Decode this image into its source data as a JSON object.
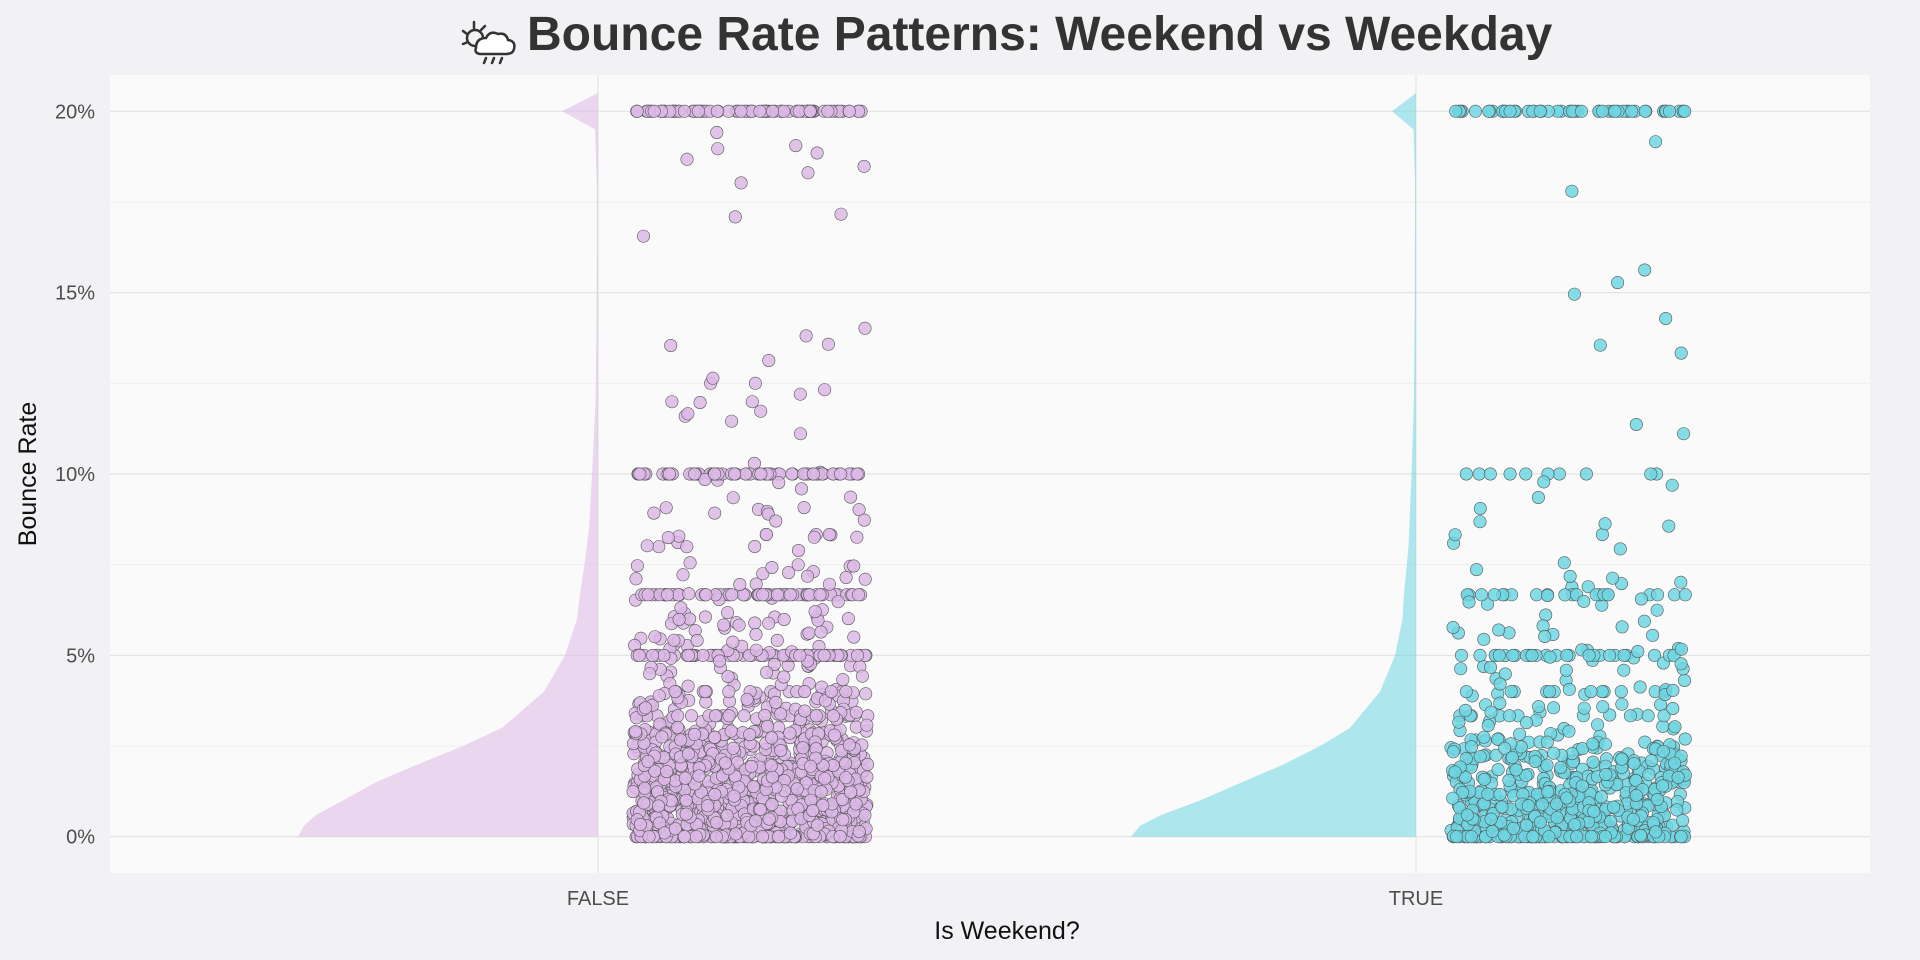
{
  "chart_data": {
    "type": "scatter",
    "subtype": "raincloud (half-violin density + jittered points)",
    "title": "Bounce Rate Patterns: Weekend vs Weekday",
    "title_icon": "weather-partly-cloudy-rain-icon",
    "xlabel": "Is Weekend?",
    "ylabel": "Bounce Rate",
    "categories": [
      "FALSE",
      "TRUE"
    ],
    "ylim": [
      -0.01,
      0.21
    ],
    "yticks": [
      0,
      0.05,
      0.1,
      0.15,
      0.2
    ],
    "ytick_labels": [
      "0%",
      "5%",
      "10%",
      "15%",
      "20%"
    ],
    "grid": true,
    "legend": "none",
    "colors": {
      "FALSE": "#dcb8e6",
      "TRUE": "#6fd6e2",
      "panel_background": "#fafafa",
      "page_background": "#f2f2f5",
      "grid": "#e6e6e6",
      "point_outline": "#555555"
    },
    "series": [
      {
        "category": "FALSE",
        "color": "#dcb8e6",
        "approx_n_points": 1600,
        "density_profile": [
          [
            0.0,
            1.0
          ],
          [
            0.003,
            0.98
          ],
          [
            0.006,
            0.94
          ],
          [
            0.01,
            0.85
          ],
          [
            0.015,
            0.74
          ],
          [
            0.02,
            0.6
          ],
          [
            0.025,
            0.45
          ],
          [
            0.03,
            0.32
          ],
          [
            0.04,
            0.18
          ],
          [
            0.05,
            0.11
          ],
          [
            0.06,
            0.07
          ],
          [
            0.067,
            0.06
          ],
          [
            0.075,
            0.045
          ],
          [
            0.085,
            0.03
          ],
          [
            0.1,
            0.02
          ],
          [
            0.12,
            0.008
          ],
          [
            0.14,
            0.005
          ],
          [
            0.16,
            0.004
          ],
          [
            0.18,
            0.004
          ],
          [
            0.195,
            0.01
          ],
          [
            0.2,
            0.12
          ],
          [
            0.205,
            0.0
          ]
        ],
        "value_clusters": [
          {
            "value": 0.2,
            "share": 0.05
          },
          {
            "value": 0.1,
            "share": 0.04
          },
          {
            "value": 0.0667,
            "share": 0.04
          },
          {
            "value": 0.05,
            "share": 0.04
          },
          {
            "value": 0.0,
            "share": 0.08
          }
        ]
      },
      {
        "category": "TRUE",
        "color": "#6fd6e2",
        "approx_n_points": 800,
        "density_profile": [
          [
            0.0,
            0.95
          ],
          [
            0.003,
            0.92
          ],
          [
            0.006,
            0.85
          ],
          [
            0.01,
            0.72
          ],
          [
            0.015,
            0.58
          ],
          [
            0.02,
            0.44
          ],
          [
            0.025,
            0.32
          ],
          [
            0.03,
            0.22
          ],
          [
            0.04,
            0.12
          ],
          [
            0.05,
            0.07
          ],
          [
            0.06,
            0.045
          ],
          [
            0.067,
            0.04
          ],
          [
            0.08,
            0.025
          ],
          [
            0.1,
            0.015
          ],
          [
            0.12,
            0.007
          ],
          [
            0.15,
            0.004
          ],
          [
            0.18,
            0.003
          ],
          [
            0.195,
            0.008
          ],
          [
            0.2,
            0.08
          ],
          [
            0.205,
            0.0
          ]
        ],
        "value_clusters": [
          {
            "value": 0.2,
            "share": 0.06
          },
          {
            "value": 0.1,
            "share": 0.015
          },
          {
            "value": 0.0667,
            "share": 0.03
          },
          {
            "value": 0.05,
            "share": 0.03
          },
          {
            "value": 0.0,
            "share": 0.1
          }
        ]
      }
    ]
  }
}
